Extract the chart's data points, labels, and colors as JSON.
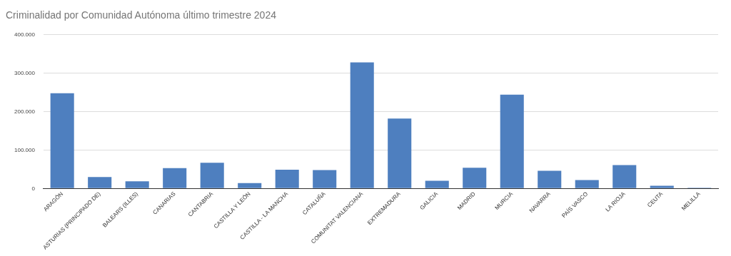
{
  "chart_data": {
    "type": "bar",
    "title": "Criminalidad por Comunidad Autónoma último trimestre 2024",
    "categories": [
      "ARAGÓN",
      "ASTURIAS (PRINCIPADO DE)",
      "BALEARS (ILLES)",
      "CANARIAS",
      "CANTABRIA",
      "CASTILLA Y LEÓN",
      "CASTILLA - LA MANCHA",
      "CATALUÑA",
      "COMUNITAT VALENCIANA",
      "EXTREMADURA",
      "GALICIA",
      "MADRID",
      "MURCIA",
      "NAVARRA",
      "PAÍS VASCO",
      "LA RIOJA",
      "CEUTA",
      "MELILLA"
    ],
    "values": [
      248000,
      30000,
      19000,
      53000,
      67000,
      14000,
      49000,
      48000,
      328000,
      182000,
      20000,
      54000,
      244000,
      46000,
      22000,
      61000,
      7000,
      2000
    ],
    "color": "#4e7fbf",
    "ylim": [
      0,
      400000
    ],
    "yticks": [
      {
        "value": 0,
        "label": "0"
      },
      {
        "value": 100000,
        "label": "100.000"
      },
      {
        "value": 200000,
        "label": "200.000"
      },
      {
        "value": 300000,
        "label": "300.000"
      },
      {
        "value": 400000,
        "label": "400.000"
      }
    ],
    "grid": "y",
    "legend": false
  }
}
